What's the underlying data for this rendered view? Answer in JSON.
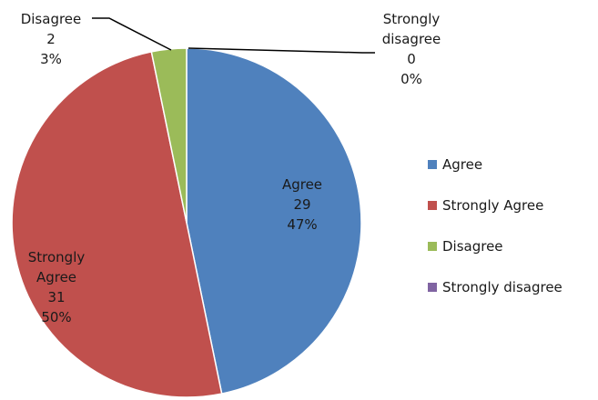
{
  "chart_data": {
    "type": "pie",
    "categories": [
      "Agree",
      "Strongly Agree",
      "Disagree",
      "Strongly disagree"
    ],
    "values": [
      29,
      31,
      2,
      0
    ],
    "percent_labels": [
      "47%",
      "50%",
      "3%",
      "0%"
    ],
    "colors": [
      "#4f81bd",
      "#c0504d",
      "#9bbb59",
      "#8064a2"
    ],
    "slice_labels": [
      {
        "lines": [
          "Agree",
          "29",
          "47%"
        ]
      },
      {
        "lines": [
          "Strongly",
          "Agree",
          "31",
          "50%"
        ]
      },
      {
        "lines": [
          "Disagree",
          "2",
          "3%"
        ]
      },
      {
        "lines": [
          "Strongly",
          "disagree",
          "0",
          "0%"
        ]
      }
    ],
    "legend": {
      "position": "right",
      "entries": [
        "Agree",
        "Strongly Agree",
        "Disagree",
        "Strongly disagree"
      ]
    }
  }
}
